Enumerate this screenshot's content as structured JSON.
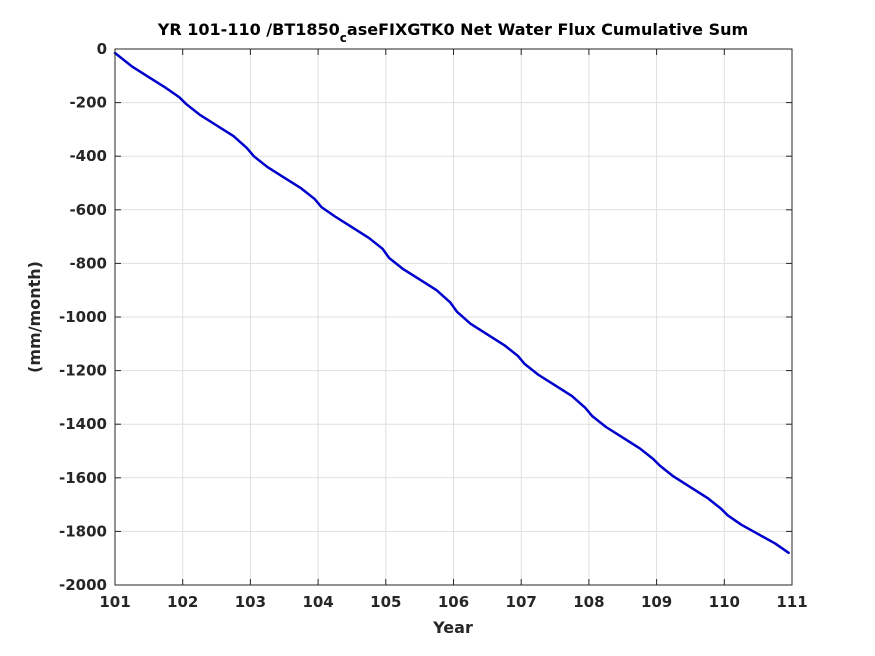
{
  "chart_data": {
    "type": "line",
    "title_parts": {
      "before_subscript": "YR 101-110 /BT1850",
      "subscript": "c",
      "after_subscript": "aseFIXGTK0 Net Water Flux Cumulative Sum"
    },
    "xlabel": "Year",
    "ylabel": "(mm/month)",
    "xlim": [
      101,
      111
    ],
    "ylim": [
      -2000,
      0
    ],
    "xticks": [
      "101",
      "102",
      "103",
      "104",
      "105",
      "106",
      "107",
      "108",
      "109",
      "110",
      "111"
    ],
    "yticks": [
      "0",
      "-200",
      "-400",
      "-600",
      "-800",
      "-1000",
      "-1200",
      "-1400",
      "-1600",
      "-1800",
      "-2000"
    ],
    "grid": true,
    "line_color": "#0000cc",
    "series": [
      {
        "x": [
          101.0,
          101.25,
          101.5,
          101.75,
          101.95,
          102.05,
          102.25,
          102.5,
          102.75,
          102.95,
          103.05,
          103.25,
          103.5,
          103.75,
          103.95,
          104.05,
          104.25,
          104.5,
          104.75,
          104.95,
          105.05,
          105.25,
          105.5,
          105.75,
          105.95,
          106.05,
          106.25,
          106.5,
          106.75,
          106.95,
          107.05,
          107.25,
          107.5,
          107.75,
          107.95,
          108.05,
          108.25,
          108.5,
          108.75,
          108.95,
          109.05,
          109.25,
          109.5,
          109.75,
          109.95,
          110.05,
          110.25,
          110.5,
          110.75,
          110.95
        ],
        "y": [
          -15,
          -65,
          -105,
          -145,
          -180,
          -205,
          -245,
          -285,
          -325,
          -370,
          -400,
          -440,
          -480,
          -520,
          -560,
          -590,
          -625,
          -665,
          -705,
          -745,
          -780,
          -820,
          -860,
          -900,
          -945,
          -980,
          -1025,
          -1065,
          -1105,
          -1145,
          -1175,
          -1215,
          -1255,
          -1295,
          -1340,
          -1370,
          -1410,
          -1450,
          -1490,
          -1530,
          -1555,
          -1595,
          -1635,
          -1675,
          -1715,
          -1740,
          -1775,
          -1810,
          -1845,
          -1880
        ]
      }
    ]
  }
}
